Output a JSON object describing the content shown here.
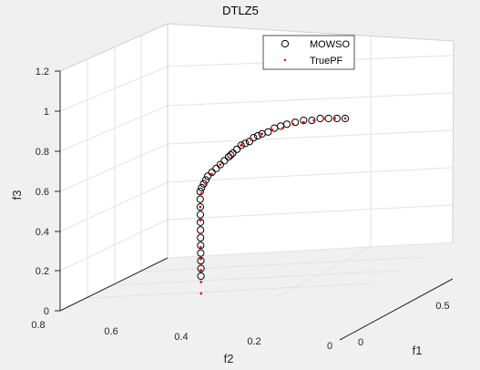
{
  "chart_data": {
    "type": "scatter",
    "title": "DTLZ5",
    "xlabel": "f1",
    "ylabel": "f2",
    "zlabel": "f3",
    "xlim": [
      0,
      0.7
    ],
    "ylim": [
      0,
      0.8
    ],
    "zlim": [
      0,
      1.2
    ],
    "xticks": [
      "0",
      "0.5"
    ],
    "yticks": [
      "0.8",
      "0.6",
      "0.4",
      "0.2",
      "0"
    ],
    "zticks": [
      "0",
      "0.2",
      "0.4",
      "0.6",
      "0.8",
      "1",
      "1.2"
    ],
    "grid": true,
    "legend_position": "top-right",
    "series": [
      {
        "name": "MOWSO",
        "marker": "open-circle",
        "color": "#000000",
        "x": [
          0.0,
          0.04,
          0.08,
          0.12,
          0.16,
          0.2,
          0.24,
          0.28,
          0.31,
          0.34,
          0.37,
          0.4,
          0.42,
          0.44,
          0.46,
          0.48,
          0.5,
          0.52,
          0.54,
          0.55,
          0.56,
          0.58,
          0.6,
          0.62,
          0.64,
          0.66,
          0.67,
          0.68,
          0.69,
          0.7,
          0.7,
          0.7,
          0.7,
          0.7,
          0.7,
          0.7,
          0.7,
          0.7,
          0.7,
          0.7,
          0.7
        ],
        "z": [
          1.0,
          1.0,
          1.0,
          1.0,
          0.99,
          0.99,
          0.98,
          0.97,
          0.96,
          0.95,
          0.93,
          0.92,
          0.91,
          0.9,
          0.88,
          0.87,
          0.86,
          0.84,
          0.82,
          0.81,
          0.8,
          0.78,
          0.76,
          0.74,
          0.72,
          0.7,
          0.68,
          0.66,
          0.64,
          0.62,
          0.58,
          0.54,
          0.5,
          0.46,
          0.42,
          0.38,
          0.34,
          0.3,
          0.26,
          0.22,
          0.18
        ]
      },
      {
        "name": "TruePF",
        "marker": "dot",
        "color": "#ff0000",
        "x": [
          0.0,
          0.05,
          0.1,
          0.15,
          0.2,
          0.25,
          0.3,
          0.35,
          0.4,
          0.45,
          0.5,
          0.55,
          0.6,
          0.64,
          0.67,
          0.69,
          0.7,
          0.7,
          0.7,
          0.7,
          0.7,
          0.7,
          0.7,
          0.7
        ],
        "z": [
          1.0,
          1.0,
          1.0,
          0.99,
          0.98,
          0.97,
          0.95,
          0.94,
          0.92,
          0.89,
          0.86,
          0.81,
          0.76,
          0.71,
          0.66,
          0.61,
          0.54,
          0.47,
          0.4,
          0.33,
          0.27,
          0.21,
          0.15,
          0.09
        ]
      }
    ]
  }
}
